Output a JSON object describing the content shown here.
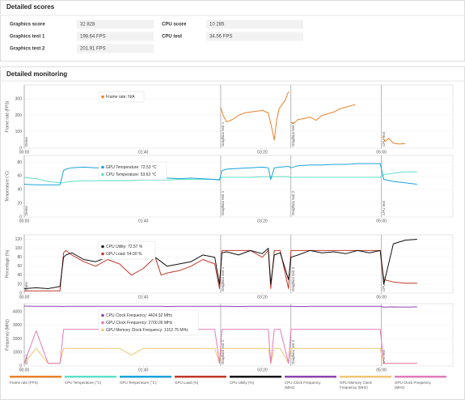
{
  "scores": {
    "title": "Detailed scores",
    "left": [
      {
        "label": "Graphics score",
        "value": "32 828"
      },
      {
        "label": "Graphics test 1",
        "value": "198.64 FPS"
      },
      {
        "label": "Graphics test 2",
        "value": "201.91 FPS"
      }
    ],
    "right": [
      {
        "label": "CPU score",
        "value": "10 285"
      },
      {
        "label": "CPU test",
        "value": "34.56 FPS"
      }
    ]
  },
  "monitoring_title": "Detailed monitoring",
  "chart_data": [
    {
      "type": "line",
      "ylabel": "Frame rate (FPS)",
      "xlim": [
        0,
        360
      ],
      "ylim": [
        0,
        385
      ],
      "yticks": [
        0,
        100,
        200,
        300
      ],
      "grid": true,
      "xticks": [
        {
          "value": 0,
          "label": "00:00"
        },
        {
          "value": 100,
          "label": "01:40"
        },
        {
          "value": 200,
          "label": "03:20"
        },
        {
          "value": 300,
          "label": "05:00"
        }
      ],
      "markers": [
        {
          "x": 0,
          "label": "Demo"
        },
        {
          "x": 165,
          "label": "Graphics test 1"
        },
        {
          "x": 224,
          "label": "Graphics test 2"
        },
        {
          "x": 300,
          "label": "CPU test"
        }
      ],
      "tooltip": [
        {
          "text": "Frame rate: N/A",
          "color": "#e8822a"
        }
      ],
      "x": [
        165,
        167,
        170,
        175,
        180,
        185,
        190,
        195,
        200,
        205,
        208,
        210,
        212,
        214,
        216,
        219,
        222,
        223,
        224,
        226,
        230,
        235,
        240,
        245,
        250,
        255,
        260,
        265,
        270,
        275,
        278,
        290,
        301,
        303,
        306,
        310,
        315,
        320
      ],
      "series": [
        {
          "name": "Frame rate (FPS)",
          "color": "#e8822a",
          "values": [
            250,
            200,
            160,
            175,
            200,
            215,
            220,
            225,
            230,
            215,
            120,
            50,
            170,
            240,
            260,
            290,
            345,
            null,
            160,
            150,
            175,
            180,
            190,
            170,
            200,
            210,
            220,
            240,
            250,
            260,
            265,
            null,
            70,
            40,
            60,
            30,
            25,
            28
          ]
        }
      ]
    },
    {
      "type": "line",
      "ylabel": "Temperature (°C)",
      "xlim": [
        0,
        360
      ],
      "ylim": [
        0,
        90
      ],
      "yticks": [
        0,
        20,
        40,
        60,
        80
      ],
      "grid": true,
      "xticks": [
        {
          "value": 0,
          "label": "00:00"
        },
        {
          "value": 100,
          "label": "01:40"
        },
        {
          "value": 200,
          "label": "03:20"
        },
        {
          "value": 300,
          "label": "05:00"
        }
      ],
      "markers": [
        {
          "x": 0,
          "label": "Demo"
        },
        {
          "x": 165,
          "label": "Graphics test 1"
        },
        {
          "x": 224,
          "label": "Graphics test 2"
        },
        {
          "x": 300,
          "label": "CPU test"
        }
      ],
      "tooltip": [
        {
          "text": "GPU Temperature: 72.53 °C",
          "color": "#1aa3d9"
        },
        {
          "text": "CPU Temperature: 53.63 °C",
          "color": "#5fe0c8"
        }
      ],
      "x": [
        0,
        10,
        20,
        30,
        33,
        35,
        40,
        50,
        60,
        70,
        80,
        90,
        100,
        110,
        115,
        120,
        130,
        140,
        150,
        160,
        164,
        166,
        170,
        180,
        190,
        200,
        205,
        207,
        210,
        215,
        222,
        224,
        230,
        240,
        250,
        260,
        270,
        280,
        290,
        299,
        302,
        310,
        320,
        330
      ],
      "series": [
        {
          "name": "CPU Temperature (°C)",
          "color": "#5fe0c8",
          "values": [
            58,
            56,
            52,
            50,
            50,
            51,
            52,
            53,
            53,
            53,
            53,
            53,
            54,
            54,
            54,
            54,
            55,
            55,
            55,
            55,
            55,
            58,
            58,
            58,
            58,
            59,
            59,
            59,
            59,
            59,
            59,
            58,
            58,
            58,
            58,
            58,
            58,
            58,
            58,
            58,
            62,
            64,
            66,
            66
          ]
        },
        {
          "name": "GPU Temperature (°C)",
          "color": "#1aa3d9",
          "values": [
            48,
            47,
            47,
            47,
            68,
            70,
            72,
            73,
            72,
            72,
            74,
            70,
            72,
            73,
            60,
            57,
            56,
            57,
            56,
            55,
            54,
            68,
            70,
            71,
            72,
            73,
            72,
            55,
            72,
            73,
            74,
            72,
            75,
            76,
            76,
            77,
            77,
            78,
            78,
            78,
            55,
            52,
            50,
            48
          ]
        }
      ]
    },
    {
      "type": "line",
      "ylabel": "Percentage (%)",
      "xlim": [
        0,
        360
      ],
      "ylim": [
        0,
        130
      ],
      "yticks": [
        0,
        20,
        40,
        60,
        80,
        100,
        120
      ],
      "grid": true,
      "xticks": [
        {
          "value": 0,
          "label": "00:00"
        },
        {
          "value": 100,
          "label": "01:40"
        },
        {
          "value": 200,
          "label": "03:20"
        },
        {
          "value": 300,
          "label": "05:00"
        }
      ],
      "markers": [
        {
          "x": 0,
          "label": "Demo"
        },
        {
          "x": 165,
          "label": "Graphics test 1"
        },
        {
          "x": 224,
          "label": "Graphics test 2"
        },
        {
          "x": 300,
          "label": "CPU test"
        }
      ],
      "tooltip": [
        {
          "text": "CPU Utility: 72.57 %",
          "color": "#222222"
        },
        {
          "text": "GPU Load: 54.00 %",
          "color": "#c0392b"
        }
      ],
      "x": [
        0,
        10,
        20,
        30,
        33,
        35,
        40,
        50,
        60,
        70,
        80,
        90,
        100,
        110,
        115,
        120,
        130,
        140,
        150,
        160,
        164,
        166,
        170,
        180,
        190,
        200,
        205,
        207,
        210,
        215,
        222,
        224,
        230,
        240,
        250,
        260,
        270,
        280,
        290,
        299,
        302,
        310,
        320,
        330
      ],
      "series": [
        {
          "name": "GPU Load (%)",
          "color": "#c0392b",
          "values": [
            5,
            5,
            5,
            5,
            90,
            95,
            85,
            70,
            60,
            75,
            65,
            40,
            55,
            80,
            40,
            45,
            50,
            60,
            75,
            65,
            10,
            95,
            95,
            95,
            95,
            80,
            95,
            10,
            95,
            95,
            10,
            95,
            95,
            95,
            95,
            95,
            95,
            95,
            95,
            95,
            30,
            25,
            22,
            22
          ]
        },
        {
          "name": "CPU Utility (%)",
          "color": "#111111",
          "values": [
            10,
            12,
            10,
            15,
            80,
            85,
            90,
            75,
            70,
            80,
            85,
            78,
            90,
            80,
            70,
            60,
            65,
            70,
            85,
            80,
            20,
            90,
            92,
            85,
            95,
            88,
            100,
            20,
            85,
            90,
            30,
            80,
            85,
            95,
            90,
            92,
            88,
            95,
            90,
            95,
            20,
            110,
            118,
            120
          ]
        }
      ]
    },
    {
      "type": "line",
      "ylabel": "Frequency (MHz)",
      "xlim": [
        0,
        360
      ],
      "ylim": [
        0,
        4600
      ],
      "yticks": [
        0,
        1000,
        2000,
        3000,
        4000
      ],
      "grid": true,
      "xticks": [
        {
          "value": 0,
          "label": "00:00"
        },
        {
          "value": 100,
          "label": "01:40"
        },
        {
          "value": 200,
          "label": "03:20"
        },
        {
          "value": 300,
          "label": "05:00"
        }
      ],
      "markers": [
        {
          "x": 0,
          "label": "Demo"
        },
        {
          "x": 165,
          "label": "Graphics test 1"
        },
        {
          "x": 224,
          "label": "Graphics test 2"
        },
        {
          "x": 300,
          "label": "CPU test"
        }
      ],
      "tooltip": [
        {
          "text": "CPU Clock Frequency: 4424.32 MHz",
          "color": "#8e44ad"
        },
        {
          "text": "GPU Clock Frequency: 2700.00 MHz",
          "color": "#e07bb8"
        },
        {
          "text": "GPU Memory Clock Frequency: 1312.75 MHz",
          "color": "#f0c674"
        }
      ],
      "x": [
        0,
        10,
        20,
        30,
        33,
        35,
        40,
        50,
        60,
        70,
        80,
        90,
        100,
        110,
        115,
        120,
        130,
        140,
        150,
        160,
        164,
        166,
        170,
        180,
        190,
        200,
        205,
        207,
        210,
        215,
        222,
        224,
        230,
        240,
        250,
        260,
        270,
        280,
        290,
        299,
        302,
        310,
        320,
        330
      ],
      "series": [
        {
          "name": "CPU Clock Frequency (MHz)",
          "color": "#8e44ad",
          "values": [
            4420,
            4400,
            4410,
            4400,
            4390,
            4400,
            4410,
            4400,
            4400,
            4410,
            4400,
            4400,
            4410,
            4400,
            4400,
            4390,
            4400,
            4410,
            4400,
            4400,
            4410,
            4400,
            4400,
            4390,
            4400,
            4410,
            4400,
            4400,
            4400,
            4410,
            4400,
            4400,
            4390,
            4400,
            4400,
            4410,
            4400,
            4400,
            4400,
            4410,
            4350,
            4360,
            4350,
            4360
          ]
        },
        {
          "name": "GPU Memory Clock Frequency (MHz)",
          "color": "#f0c674",
          "values": [
            200,
            1300,
            200,
            200,
            1300,
            1300,
            1300,
            1300,
            1300,
            1300,
            1300,
            800,
            1300,
            1300,
            1300,
            1300,
            1300,
            1300,
            1300,
            1300,
            200,
            1300,
            1300,
            1300,
            1300,
            1300,
            1300,
            200,
            1300,
            1300,
            200,
            1300,
            1300,
            1300,
            1300,
            1300,
            1300,
            1300,
            1300,
            1300,
            200,
            200,
            200,
            200
          ]
        },
        {
          "name": "GPU Clock Frequency (MHz)",
          "color": "#e07bb8",
          "values": [
            200,
            2600,
            200,
            200,
            2700,
            2700,
            2700,
            2700,
            2700,
            2700,
            2700,
            2700,
            2700,
            2700,
            2700,
            2700,
            2700,
            2700,
            2700,
            2700,
            200,
            2700,
            2700,
            2700,
            2700,
            2700,
            2700,
            200,
            2700,
            2700,
            200,
            2700,
            2700,
            2700,
            2700,
            2700,
            2700,
            2700,
            2700,
            2700,
            200,
            200,
            200,
            200
          ]
        }
      ]
    }
  ]
}
